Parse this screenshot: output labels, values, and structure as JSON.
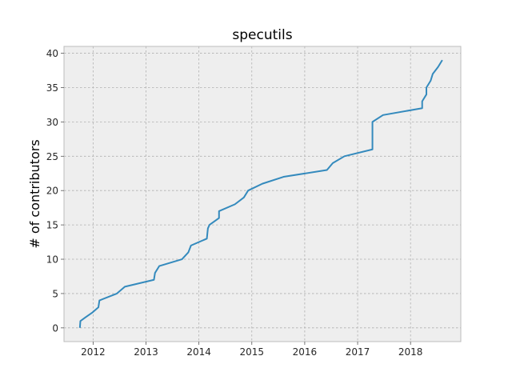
{
  "chart_data": {
    "type": "line",
    "title": "specutils",
    "xlabel": "",
    "ylabel": "# of contributors",
    "xlim": [
      2011.45,
      2018.95
    ],
    "ylim": [
      -2,
      41
    ],
    "grid": true,
    "x_ticks": [
      2012,
      2013,
      2014,
      2015,
      2016,
      2017,
      2018
    ],
    "x_tick_labels": [
      "2012",
      "2013",
      "2014",
      "2015",
      "2016",
      "2017",
      "2018"
    ],
    "y_ticks": [
      0,
      5,
      10,
      15,
      20,
      25,
      30,
      35,
      40
    ],
    "y_tick_labels": [
      "0",
      "5",
      "10",
      "15",
      "20",
      "25",
      "30",
      "35",
      "40"
    ],
    "colors": {
      "line": "#348abd",
      "axes_bg": "#eeeeee",
      "axes_edge": "#bcbcbc"
    },
    "series": [
      {
        "name": "contributors",
        "x": [
          2011.75,
          2011.76,
          2011.85,
          2011.98,
          2012.1,
          2012.12,
          2012.45,
          2012.6,
          2013.15,
          2013.17,
          2013.25,
          2013.68,
          2013.8,
          2013.85,
          2014.15,
          2014.17,
          2014.2,
          2014.38,
          2014.38,
          2014.68,
          2014.85,
          2014.93,
          2015.2,
          2015.6,
          2016.42,
          2016.53,
          2016.75,
          2017.28,
          2017.28,
          2017.48,
          2018.22,
          2018.22,
          2018.3,
          2018.3,
          2018.38,
          2018.42,
          2018.52,
          2018.6
        ],
        "y": [
          0,
          1,
          1.5,
          2.2,
          3,
          4,
          5,
          6,
          7,
          8,
          9,
          10,
          11,
          12,
          13,
          14.5,
          15,
          16,
          17,
          18,
          19,
          20,
          21,
          22,
          23,
          24,
          25,
          26,
          30,
          31,
          32,
          33,
          34,
          35,
          36,
          37,
          38,
          39
        ]
      }
    ]
  }
}
